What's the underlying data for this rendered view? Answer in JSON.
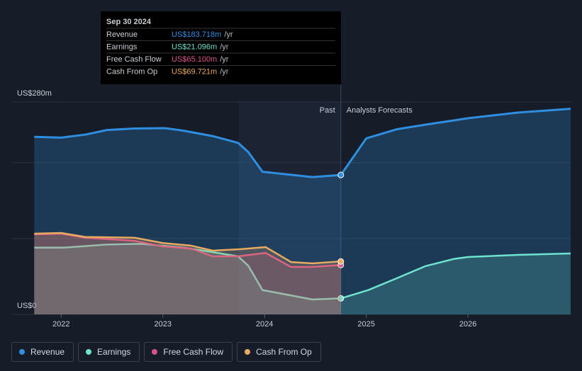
{
  "chart_data": {
    "type": "line",
    "xlim": [
      2021.51,
      2027.01
    ],
    "xticks": [
      2022,
      2023,
      2024,
      2025,
      2026
    ],
    "ylim": [
      0,
      280
    ],
    "yticks": [
      {
        "value": 0,
        "label": "US$0"
      },
      {
        "value": 280,
        "label": "US$280m"
      }
    ],
    "ygrid": [
      0,
      100,
      200,
      280
    ],
    "divider": 2024.75,
    "past_label": "Past",
    "forecast_label": "Analysts Forecasts",
    "series": [
      {
        "name": "Revenue",
        "color": "#2f8ee0",
        "x": [
          2021.735,
          2022.0,
          2022.24,
          2022.45,
          2022.72,
          2023.02,
          2023.21,
          2023.49,
          2023.74,
          2023.84,
          2023.98,
          2024.26,
          2024.47,
          2024.75,
          2025.0,
          2025.3,
          2025.58,
          2026.0,
          2026.49,
          2027.01
        ],
        "values": [
          234,
          233,
          237,
          243,
          245,
          245.5,
          242,
          235,
          226,
          214,
          188,
          184,
          181,
          183.718,
          232,
          244,
          250,
          258.5,
          266,
          271
        ]
      },
      {
        "name": "Earnings",
        "color": "#6ee3cf",
        "x": [
          2021.735,
          2022.03,
          2022.45,
          2022.79,
          2023.21,
          2023.49,
          2023.74,
          2023.84,
          2023.98,
          2024.26,
          2024.47,
          2024.75,
          2025.02,
          2025.3,
          2025.58,
          2025.86,
          2026.0,
          2026.49,
          2027.01
        ],
        "values": [
          88,
          88,
          92,
          93,
          88,
          82,
          76.5,
          64,
          32,
          25,
          19.6,
          21.096,
          32,
          47.6,
          63.5,
          73,
          75.6,
          78.4,
          80.3
        ]
      },
      {
        "name": "Free Cash Flow",
        "color": "#d8538b",
        "x": [
          2021.735,
          2022.0,
          2022.24,
          2022.72,
          2023.0,
          2023.28,
          2023.49,
          2023.74,
          2024.01,
          2024.26,
          2024.47,
          2024.75
        ],
        "values": [
          105.5,
          106.4,
          101,
          97,
          89.6,
          86.8,
          76.5,
          76.5,
          81,
          62.5,
          62.5,
          65.1
        ]
      },
      {
        "name": "Cash From Op",
        "color": "#e8a960",
        "x": [
          2021.735,
          2022.0,
          2022.24,
          2022.72,
          2023.0,
          2023.28,
          2023.49,
          2023.77,
          2024.01,
          2024.26,
          2024.47,
          2024.75
        ],
        "values": [
          106.4,
          107.3,
          102,
          101,
          94,
          90.5,
          84,
          86,
          88.7,
          69,
          67.2,
          69.721
        ]
      }
    ],
    "tooltip": {
      "date": "Sep 30 2024",
      "unit": "/yr",
      "rows": [
        {
          "label": "Revenue",
          "value": "US$183.718m"
        },
        {
          "label": "Earnings",
          "value": "US$21.096m"
        },
        {
          "label": "Free Cash Flow",
          "value": "US$65.100m"
        },
        {
          "label": "Cash From Op",
          "value": "US$69.721m"
        }
      ]
    }
  }
}
